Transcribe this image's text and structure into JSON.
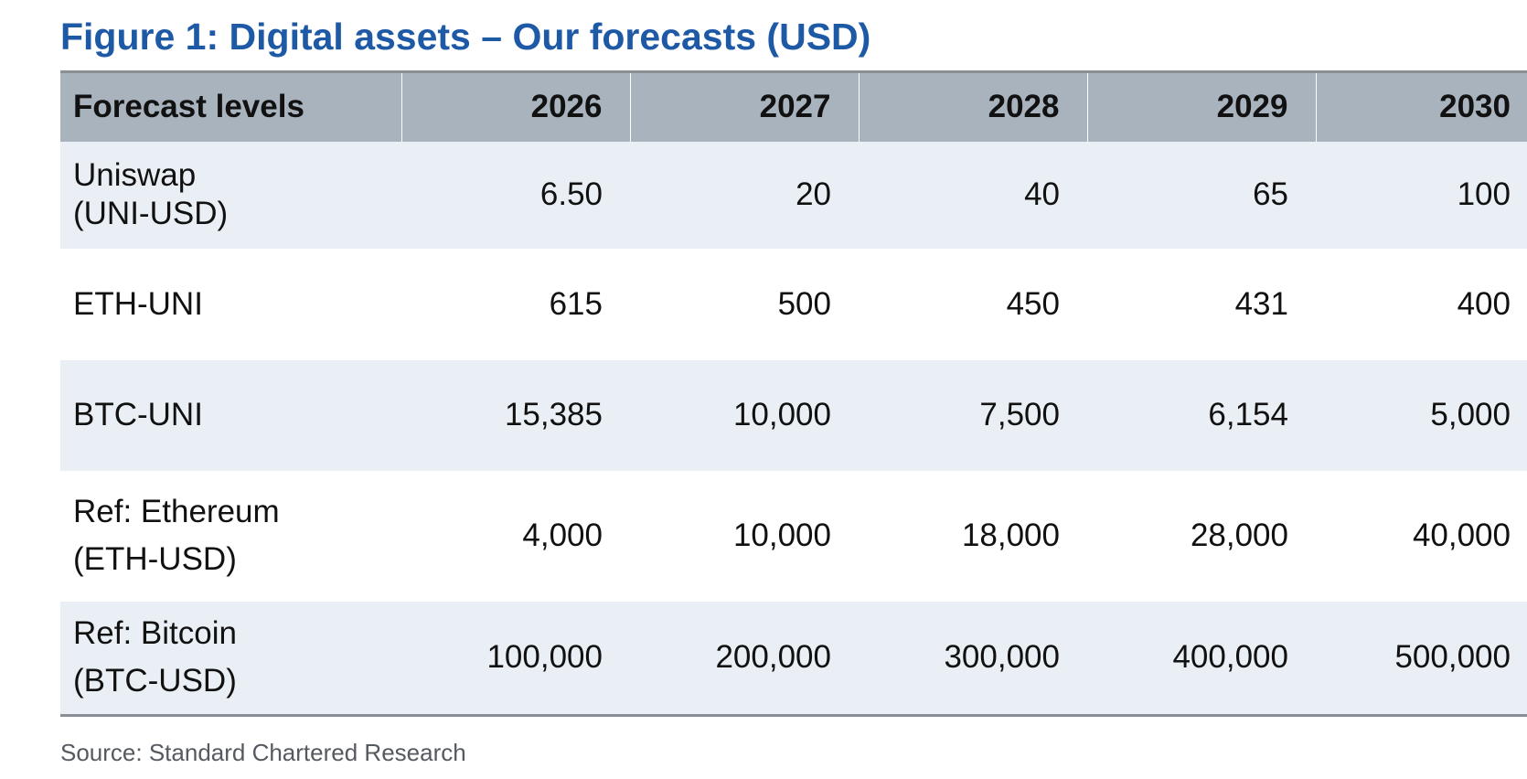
{
  "figure": {
    "title": "Figure 1: Digital assets – Our forecasts (USD)",
    "source": "Source: Standard Chartered Research"
  },
  "table": {
    "header": {
      "label": "Forecast levels",
      "years": [
        "2026",
        "2027",
        "2028",
        "2029",
        "2030"
      ]
    },
    "rows": [
      {
        "label_line1": "Uniswap",
        "label_line2": "(UNI-USD)",
        "values": [
          "6.50",
          "20",
          "40",
          "65",
          "100"
        ]
      },
      {
        "label_line1": "ETH-UNI",
        "label_line2": "",
        "values": [
          "615",
          "500",
          "450",
          "431",
          "400"
        ]
      },
      {
        "label_line1": "BTC-UNI",
        "label_line2": "",
        "values": [
          "15,385",
          "10,000",
          "7,500",
          "6,154",
          "5,000"
        ]
      },
      {
        "label_line1": "Ref: Ethereum",
        "label_line2": "(ETH-USD)",
        "values": [
          "4,000",
          "10,000",
          "18,000",
          "28,000",
          "40,000"
        ]
      },
      {
        "label_line1": "Ref: Bitcoin",
        "label_line2": "(BTC-USD)",
        "values": [
          "100,000",
          "200,000",
          "300,000",
          "400,000",
          "500,000"
        ]
      }
    ]
  },
  "colors": {
    "title": "#1e59a6",
    "header_bg": "#a9b3be",
    "row_shade": "#eaeff5",
    "rule": "#8a8f96",
    "source_text": "#555a60"
  }
}
